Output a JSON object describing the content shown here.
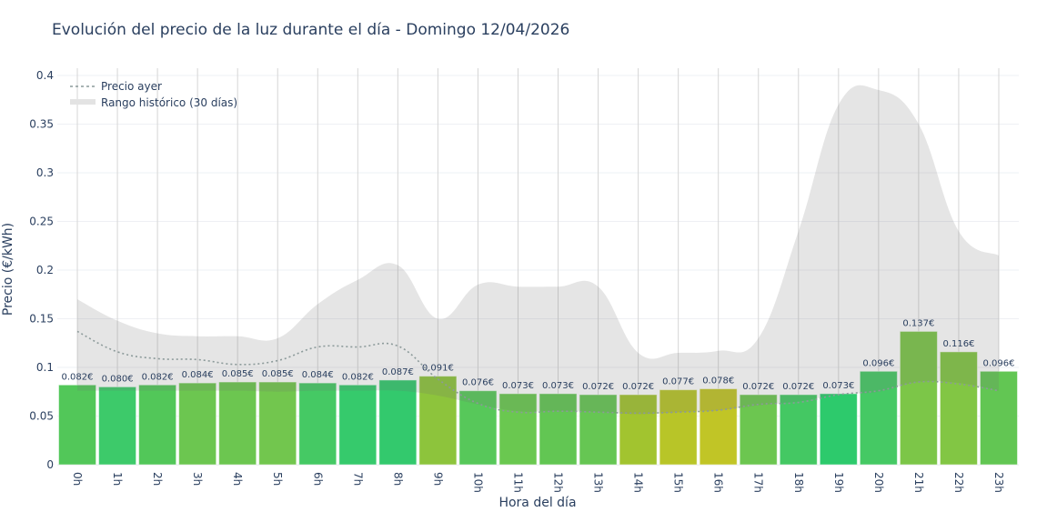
{
  "chart_data": {
    "type": "bar",
    "title": "Evolución del precio de la luz durante el día - Domingo 12/04/2026",
    "xlabel": "Hora del día",
    "ylabel": "Precio (€/kWh)",
    "ylim": [
      0,
      0.4
    ],
    "yticks": [
      "0",
      "0.05",
      "0.1",
      "0.15",
      "0.2",
      "0.25",
      "0.3",
      "0.35",
      "0.4"
    ],
    "grid": true,
    "legend_position": "top-left",
    "categories": [
      "0h",
      "1h",
      "2h",
      "3h",
      "4h",
      "5h",
      "6h",
      "7h",
      "8h",
      "9h",
      "10h",
      "11h",
      "12h",
      "13h",
      "14h",
      "15h",
      "16h",
      "17h",
      "18h",
      "19h",
      "20h",
      "21h",
      "22h",
      "23h"
    ],
    "values": [
      0.082,
      0.08,
      0.082,
      0.084,
      0.085,
      0.085,
      0.084,
      0.082,
      0.087,
      0.091,
      0.076,
      0.073,
      0.073,
      0.072,
      0.072,
      0.077,
      0.078,
      0.072,
      0.072,
      0.073,
      0.096,
      0.137,
      0.116,
      0.096
    ],
    "labels": [
      "0.082€",
      "0.080€",
      "0.082€",
      "0.084€",
      "0.085€",
      "0.085€",
      "0.084€",
      "0.082€",
      "0.087€",
      "0.091€",
      "0.076€",
      "0.073€",
      "0.073€",
      "0.072€",
      "0.072€",
      "0.077€",
      "0.078€",
      "0.072€",
      "0.072€",
      "0.073€",
      "0.096€",
      "0.137€",
      "0.116€",
      "0.096€"
    ],
    "bar_colors": [
      "#52c759",
      "#3dca6a",
      "#52c759",
      "#6cc650",
      "#6cc650",
      "#72c64e",
      "#45c964",
      "#36ca6c",
      "#33c96d",
      "#8dc43c",
      "#57c85a",
      "#6ac850",
      "#62c653",
      "#66c653",
      "#a2c42f",
      "#b8c528",
      "#c1c526",
      "#6cc650",
      "#44c863",
      "#2dca6c",
      "#45c964",
      "#7cc648",
      "#82c644",
      "#62c653"
    ],
    "series": [
      {
        "name": "Precio ayer",
        "type": "line",
        "style": "dotted",
        "color": "#8c9a9a",
        "values": [
          0.137,
          0.116,
          0.109,
          0.108,
          0.103,
          0.107,
          0.121,
          0.121,
          0.122,
          0.088,
          0.063,
          0.054,
          0.055,
          0.054,
          0.053,
          0.054,
          0.056,
          0.062,
          0.064,
          0.072,
          0.076,
          0.085,
          0.083,
          0.076
        ]
      },
      {
        "name": "Rango histórico (30 días)",
        "type": "area-band",
        "color": "#bfbfbf",
        "upper": [
          0.17,
          0.148,
          0.135,
          0.132,
          0.132,
          0.13,
          0.165,
          0.19,
          0.205,
          0.15,
          0.185,
          0.183,
          0.183,
          0.183,
          0.115,
          0.115,
          0.117,
          0.13,
          0.24,
          0.37,
          0.385,
          0.35,
          0.24,
          0.215
        ],
        "lower": [
          0.076,
          0.076,
          0.076,
          0.076,
          0.076,
          0.075,
          0.076,
          0.076,
          0.076,
          0.071,
          0.062,
          0.055,
          0.055,
          0.054,
          0.052,
          0.054,
          0.056,
          0.061,
          0.065,
          0.072,
          0.075,
          0.085,
          0.084,
          0.076
        ]
      }
    ]
  }
}
